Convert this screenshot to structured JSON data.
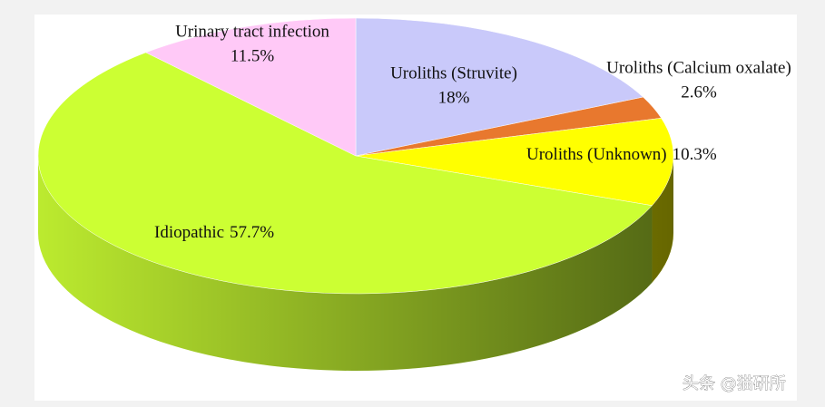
{
  "chart_data": {
    "type": "pie3d",
    "categories": [
      "Uroliths (Struvite)",
      "Uroliths (Calcium oxalate)",
      "Uroliths (Unknown)",
      "Idiopathic",
      "Urinary tract infection"
    ],
    "values": [
      18,
      2.6,
      10.3,
      57.7,
      11.5
    ],
    "value_labels": [
      "18%",
      "2.6%",
      "10.3%",
      "57.7%",
      "11.5%"
    ],
    "colors": [
      "#c9c9fa",
      "#e8782e",
      "#ffff00",
      "#ccff33",
      "#ffc9f7"
    ]
  },
  "watermark": "头条 @猫研所"
}
